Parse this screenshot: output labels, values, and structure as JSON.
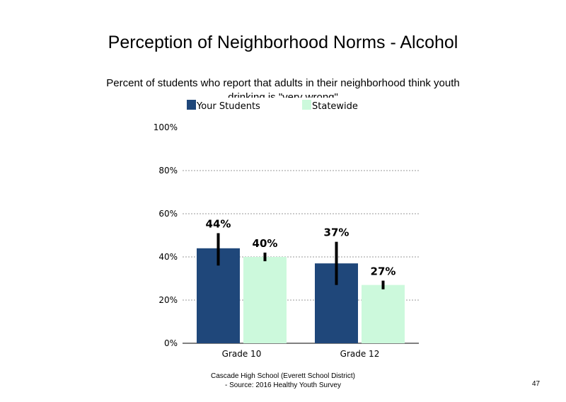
{
  "chart_data": {
    "type": "bar",
    "title": "Perception of Neighborhood Norms - Alcohol",
    "subtitle": "Percent of students who report that adults in their neighborhood think youth drinking is \"very wrong\"",
    "categories": [
      "Grade 10",
      "Grade 12"
    ],
    "series": [
      {
        "name": "Your Students",
        "color": "#1f477a",
        "values": [
          44,
          37
        ],
        "labels": [
          "44%",
          "37%"
        ],
        "error_low": [
          36,
          27
        ],
        "error_high": [
          51,
          47
        ]
      },
      {
        "name": "Statewide",
        "color": "#ccf9dc",
        "values": [
          40,
          27
        ],
        "labels": [
          "40%",
          "27%"
        ],
        "error_low": [
          38,
          25
        ],
        "error_high": [
          42,
          29
        ]
      }
    ],
    "yticks": [
      "0%",
      "20%",
      "40%",
      "60%",
      "80%",
      "100%"
    ],
    "ylim": [
      0,
      100
    ],
    "grid": true,
    "legend_position": "top"
  },
  "footer": {
    "line1": "Cascade High School (Everett School District)",
    "line2": "- Source: 2016 Healthy Youth Survey"
  },
  "page_number": "47"
}
